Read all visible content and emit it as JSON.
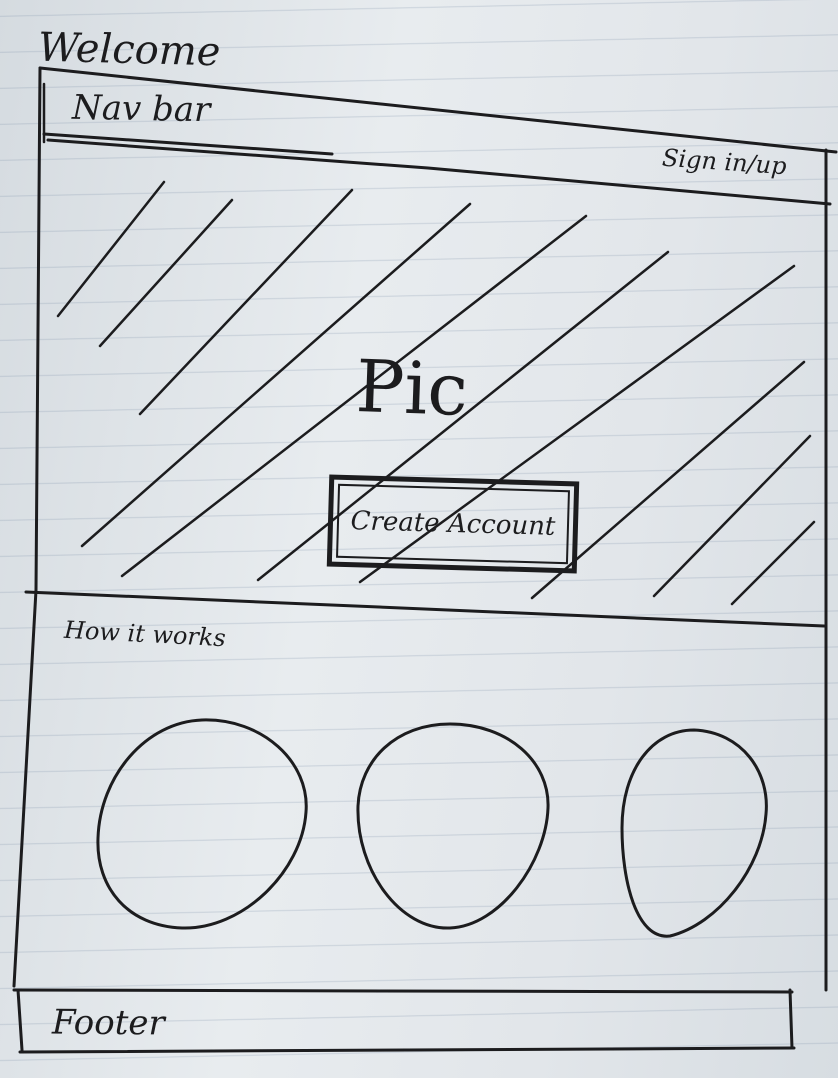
{
  "page_title": "Welcome",
  "navbar": {
    "label": "Nav bar",
    "sign_in_link": "Sign in/up"
  },
  "hero": {
    "image_placeholder": "Pic",
    "cta_label": "Create Account"
  },
  "how_it_works": {
    "heading": "How it works",
    "steps": [
      {
        "shape": "circle"
      },
      {
        "shape": "circle"
      },
      {
        "shape": "circle"
      }
    ]
  },
  "footer": {
    "label": "Footer"
  },
  "colors": {
    "ink": "#1c1c1e",
    "paper": "#dfe4e8",
    "rule": "#8c9bb0"
  }
}
